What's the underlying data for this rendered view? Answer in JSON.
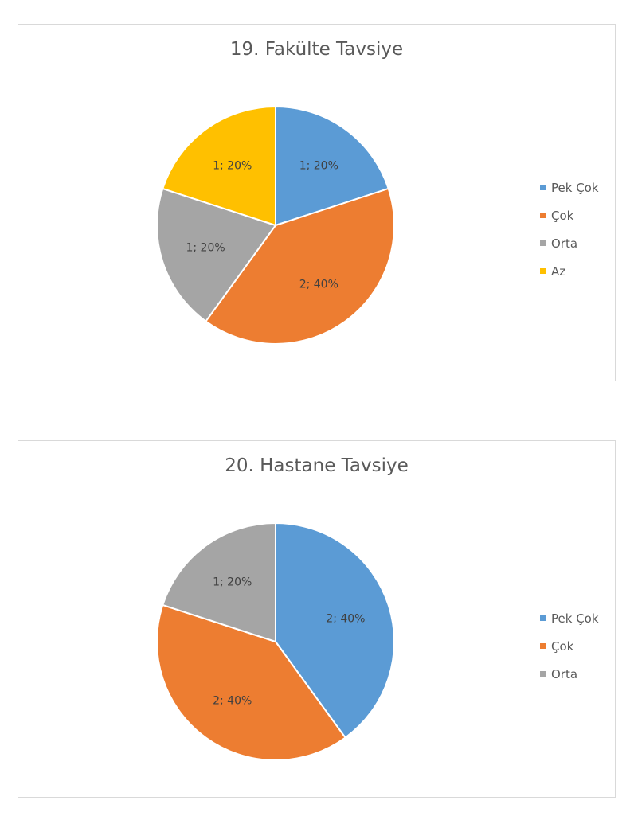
{
  "chart_data": [
    {
      "type": "pie",
      "title": "19. Fakülte Tavsiye",
      "categories": [
        "Pek Çok",
        "Çok",
        "Orta",
        "Az"
      ],
      "values": [
        1,
        2,
        1,
        1
      ],
      "percents": [
        "20%",
        "40%",
        "20%",
        "20%"
      ],
      "data_labels": [
        "1; 20%",
        "2; 40%",
        "1; 20%",
        "1; 20%"
      ],
      "colors": [
        "#5b9bd5",
        "#ed7d31",
        "#a5a5a5",
        "#ffc000"
      ],
      "legend_position": "right"
    },
    {
      "type": "pie",
      "title": "20. Hastane Tavsiye",
      "categories": [
        "Pek Çok",
        "Çok",
        "Orta"
      ],
      "values": [
        2,
        2,
        1
      ],
      "percents": [
        "40%",
        "40%",
        "20%"
      ],
      "data_labels": [
        "2; 40%",
        "2; 40%",
        "1; 20%"
      ],
      "colors": [
        "#5b9bd5",
        "#ed7d31",
        "#a5a5a5"
      ],
      "legend_position": "right"
    }
  ]
}
